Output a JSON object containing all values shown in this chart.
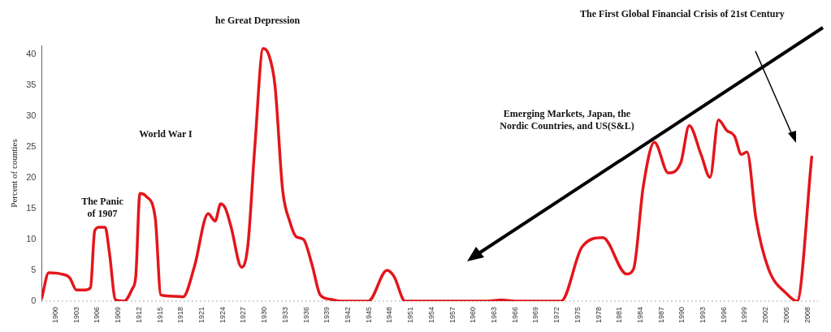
{
  "chart_data": {
    "type": "line",
    "title": "he Great Depression",
    "subtitle": "The First Global Financial Crisis of 21st Century",
    "ylabel": "Percent of counties",
    "x": [
      1898,
      1899,
      1900.8,
      1902,
      1903,
      1904.2,
      1905,
      1905.6,
      1906.2,
      1907.1,
      1907.7,
      1908.6,
      1909.8,
      1911,
      1911.5,
      1912.1,
      1913,
      1914.3,
      1915.1,
      1917,
      1918.3,
      1919.9,
      1921.9,
      1922.9,
      1923.7,
      1924.4,
      1925.2,
      1926.7,
      1927.6,
      1928.6,
      1929.8,
      1930.6,
      1931.5,
      1932.6,
      1933.6,
      1934.5,
      1935.6,
      1936.8,
      1938,
      1939.5,
      1941,
      1944.9,
      1947.6,
      1948.6,
      1950.2,
      1962,
      1964,
      1966,
      1972.6,
      1975.6,
      1978.6,
      1982,
      1983,
      1984.4,
      1986,
      1988,
      1989.8,
      1991,
      1992.7,
      1994,
      1995.2,
      1996.4,
      1997.5,
      1998.5,
      1999.3,
      2000.6,
      2002.4,
      2005,
      2006.5,
      2008.6
    ],
    "series": [
      {
        "color": "#e3161b",
        "values": [
          0.5,
          4.6,
          4.4,
          3.8,
          1.8,
          1.8,
          2.2,
          11.4,
          12,
          12,
          8,
          0.2,
          0,
          2,
          4,
          17.5,
          17,
          13.5,
          1,
          0.8,
          0.7,
          5.5,
          14.2,
          13,
          15.8,
          15,
          12,
          5.5,
          9,
          25,
          41,
          40,
          35,
          18,
          13,
          10.5,
          10,
          6,
          1,
          0.3,
          0,
          0,
          5,
          4,
          0,
          0,
          0.2,
          0,
          0,
          8.8,
          10.3,
          4.4,
          5.2,
          18.6,
          25.8,
          20.8,
          22.5,
          28.5,
          23.8,
          20.1,
          29.4,
          27.7,
          26.8,
          23.8,
          24.2,
          13.3,
          5.2,
          1.2,
          0,
          23.4
        ]
      }
    ],
    "xlim": [
      1898,
      2009.5
    ],
    "xticks": [
      1900,
      1903,
      1906,
      1909,
      1912,
      1915,
      1918,
      1921,
      1924,
      1927,
      1930,
      1933,
      1936,
      1939,
      1942,
      1945,
      1948,
      1951,
      1954,
      1957,
      1960,
      1963,
      1966,
      1969,
      1972,
      1975,
      1978,
      1981,
      1984,
      1987,
      1990,
      1993,
      1996,
      1999,
      2002,
      2005,
      2008
    ],
    "ylim": [
      0,
      41.5
    ],
    "yticks": [
      0,
      5,
      10,
      15,
      20,
      25,
      30,
      35,
      40
    ],
    "grid": false,
    "legend": false,
    "marker": "none",
    "line_style": "solid",
    "annotations": [
      "The Panic\nof 1907",
      "World War I",
      "Emerging Markets, Japan, the\nNordic Countries, and US(S&L)"
    ]
  }
}
